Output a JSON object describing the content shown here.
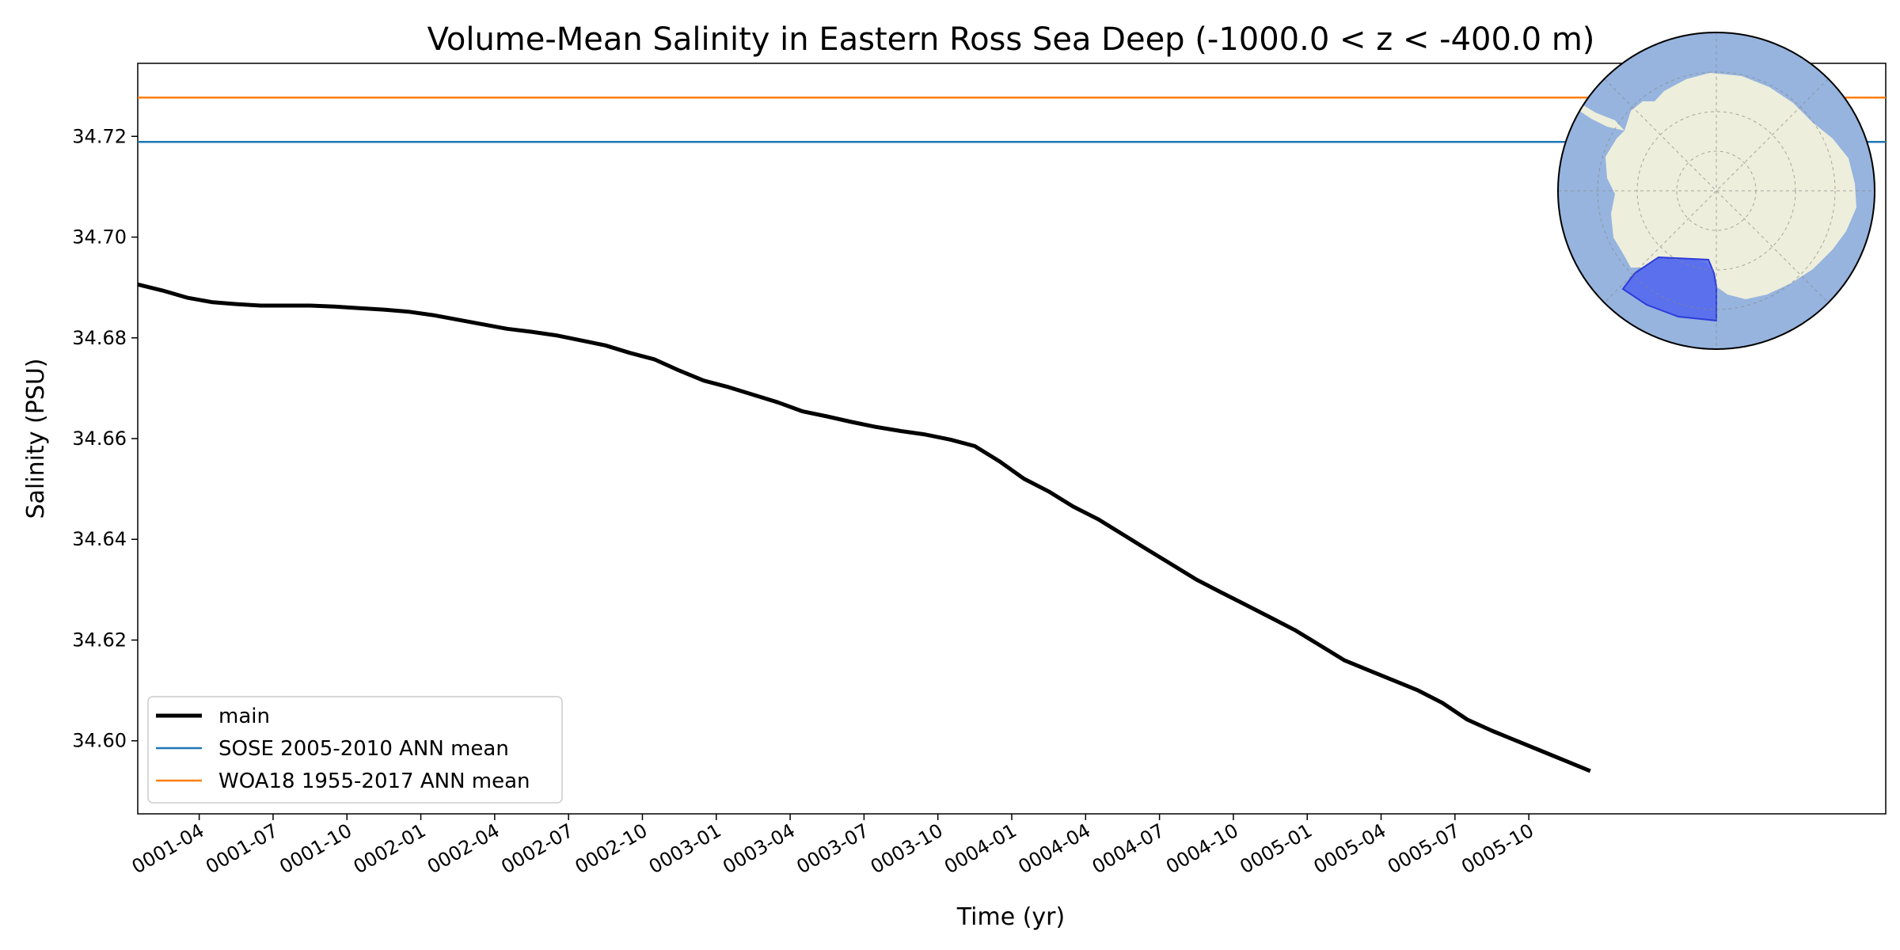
{
  "chart_data": {
    "type": "line",
    "title": "Volume-Mean Salinity in Eastern Ross Sea Deep (-1000.0 < z < -400.0 m)",
    "xlabel": "Time (yr)",
    "ylabel": "Salinity (PSU)",
    "xlim": [
      0.042,
      5.958
    ],
    "ylim": [
      34.5855,
      34.7345
    ],
    "yticks": [
      34.6,
      34.62,
      34.64,
      34.66,
      34.68,
      34.7,
      34.72
    ],
    "ytick_labels": [
      "34.60",
      "34.62",
      "34.64",
      "34.66",
      "34.68",
      "34.70",
      "34.72"
    ],
    "xticks": [
      0.25,
      0.5,
      0.75,
      1.0,
      1.25,
      1.5,
      1.75,
      2.0,
      2.25,
      2.5,
      2.75,
      3.0,
      3.25,
      3.5,
      3.75,
      4.0,
      4.25,
      4.5,
      4.75
    ],
    "xtick_labels": [
      "0001-04",
      "0001-07",
      "0001-10",
      "0002-01",
      "0002-04",
      "0002-07",
      "0002-10",
      "0003-01",
      "0003-04",
      "0003-07",
      "0003-10",
      "0004-01",
      "0004-04",
      "0004-07",
      "0004-10",
      "0005-01",
      "0005-04",
      "0005-07",
      "0005-10"
    ],
    "legend_position": "lower-left",
    "series": [
      {
        "name": "main",
        "color": "#000000",
        "style": "thick",
        "x": [
          0.042,
          0.125,
          0.208,
          0.292,
          0.375,
          0.458,
          0.542,
          0.625,
          0.708,
          0.792,
          0.875,
          0.958,
          1.042,
          1.125,
          1.208,
          1.292,
          1.375,
          1.458,
          1.542,
          1.625,
          1.708,
          1.792,
          1.875,
          1.958,
          2.042,
          2.125,
          2.208,
          2.292,
          2.375,
          2.458,
          2.542,
          2.625,
          2.708,
          2.792,
          2.875,
          2.958,
          3.042,
          3.125,
          3.208,
          3.292,
          3.375,
          3.458,
          3.542,
          3.625,
          3.708,
          3.792,
          3.875,
          3.958,
          4.042,
          4.125,
          4.208,
          4.292,
          4.375,
          4.458,
          4.542,
          4.625,
          4.708,
          4.792,
          4.875,
          4.958
        ],
        "values": [
          34.6906,
          34.6894,
          34.688,
          34.6871,
          34.6867,
          34.6864,
          34.6864,
          34.6864,
          34.6862,
          34.6859,
          34.6856,
          34.6852,
          34.6845,
          34.6836,
          34.6827,
          34.6818,
          34.6812,
          34.6805,
          34.6795,
          34.6785,
          34.677,
          34.6757,
          34.6735,
          34.6715,
          34.6702,
          34.6687,
          34.6672,
          34.6654,
          34.6644,
          34.6633,
          34.6623,
          34.6615,
          34.6608,
          34.6598,
          34.6585,
          34.6555,
          34.652,
          34.6495,
          34.6465,
          34.644,
          34.641,
          34.638,
          34.635,
          34.632,
          34.6295,
          34.627,
          34.6245,
          34.622,
          34.619,
          34.616,
          34.614,
          34.612,
          34.61,
          34.6075,
          34.6042,
          34.602,
          34.6,
          34.598,
          34.596,
          34.594
        ]
      },
      {
        "name": "SOSE 2005-2010 ANN mean",
        "color": "#1f77b4",
        "style": "hline",
        "value": 34.7189
      },
      {
        "name": "WOA18 1955-2017 ANN mean",
        "color": "#ff7f0e",
        "style": "hline",
        "value": 34.7277
      }
    ],
    "inset_map": {
      "description_label": "Eastern Ross Sea region on Antarctic polar map",
      "ocean_color": "#96b4de",
      "land_color": "#eeeedc",
      "region_color": "#5064f0"
    }
  }
}
